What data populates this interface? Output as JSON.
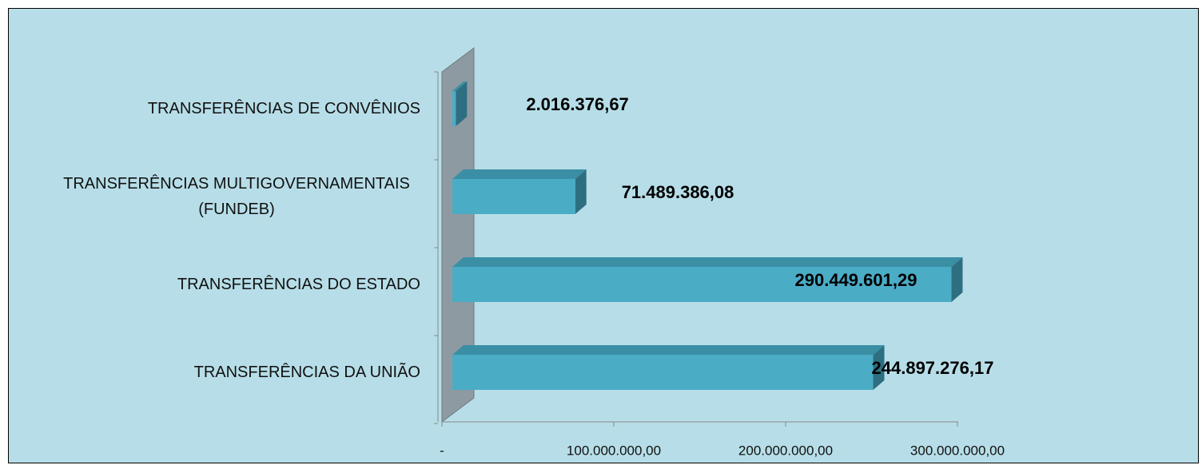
{
  "chart_data": {
    "type": "bar3d",
    "categories": [
      "TRANSFERÊNCIAS DE CONVÊNIOS",
      "TRANSFERÊNCIAS MULTIGOVERNAMENTAIS (FUNDEB)",
      "TRANSFERÊNCIAS DO ESTADO",
      "TRANSFERÊNCIAS DA UNIÃO"
    ],
    "values": [
      2016376.67,
      71489386.08,
      290449601.29,
      244897276.17
    ],
    "value_labels": [
      "2.016.376,67",
      "71.489.386,08",
      "290.449.601,29",
      "244.897.276,17"
    ],
    "color": "#4bacc6",
    "xlim": [
      0,
      300000000
    ],
    "xticks": [
      {
        "value": 0,
        "label": "-"
      },
      {
        "value": 100000000,
        "label": "100.000.000,00"
      },
      {
        "value": 200000000,
        "label": "200.000.000,00"
      },
      {
        "value": 300000000,
        "label": "300.000.000,00"
      }
    ]
  }
}
